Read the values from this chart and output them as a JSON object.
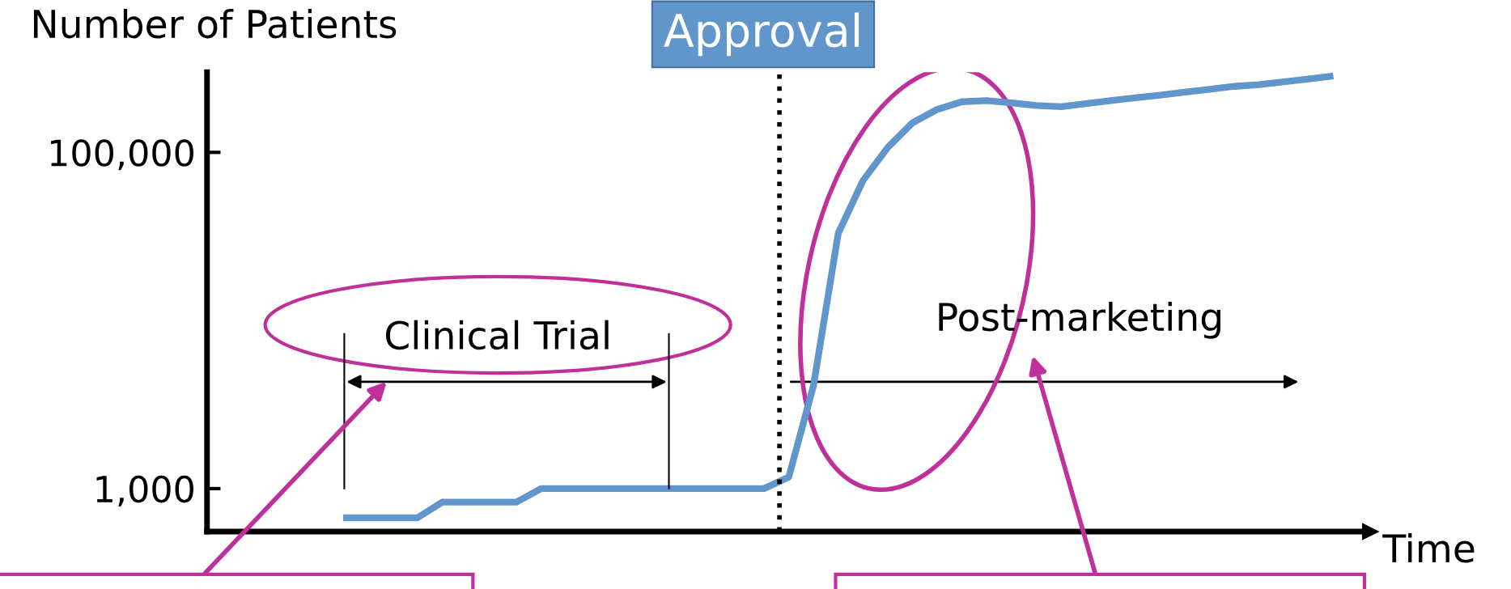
{
  "chart_data": {
    "type": "line",
    "xlabel": "Time",
    "ylabel": "Number of Patients",
    "categories": [
      null,
      null,
      null,
      null,
      null,
      null,
      null,
      null,
      null,
      null,
      null,
      null,
      null,
      null,
      null,
      null,
      null,
      null,
      null,
      null,
      null,
      null,
      null,
      null,
      null,
      null,
      null,
      null,
      null,
      null,
      null,
      null,
      null,
      null,
      null,
      null,
      null,
      null,
      null,
      null,
      null,
      null,
      null,
      null,
      null,
      null,
      null
    ],
    "series": [
      {
        "color": "#6096cb",
        "values": [
          null,
          null,
          null,
          null,
          null,
          670,
          670,
          670,
          670,
          830,
          830,
          830,
          830,
          1000,
          1000,
          1000,
          1000,
          1000,
          1000,
          1000,
          1000,
          1000,
          1000,
          1170,
          4100,
          33000,
          68000,
          107000,
          150000,
          180000,
          200000,
          203000,
          197000,
          190000,
          187000,
          195000,
          203000,
          211000,
          219000,
          228000,
          237000,
          247000,
          253000,
          263000,
          273000,
          285000,
          null
        ]
      }
    ],
    "log": "y",
    "ylim": [
      555,
      300000
    ],
    "yticks": [
      {
        "value": 1000,
        "label": "1,000"
      },
      {
        "value": 100000,
        "label": "100,000"
      }
    ],
    "tick_labels": "y",
    "grid": false,
    "marker": "none",
    "line_style": "solid",
    "annotations": [
      "Approval",
      "Clinical Trial",
      "Post-marketing"
    ]
  }
}
